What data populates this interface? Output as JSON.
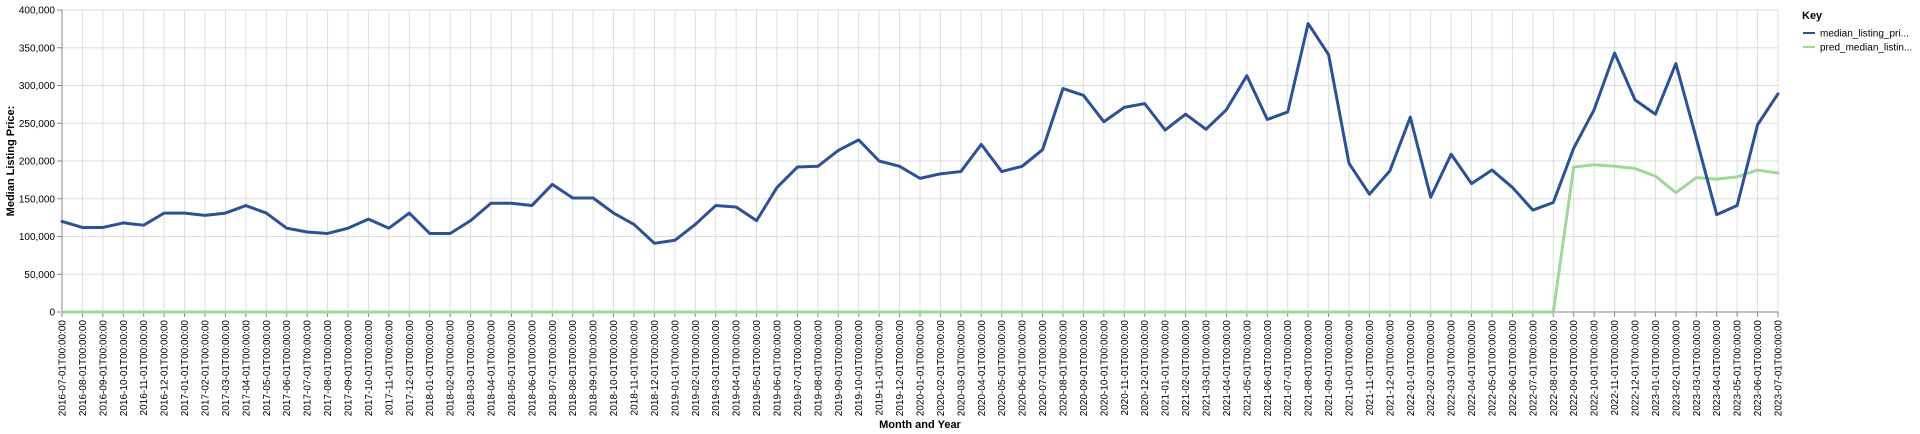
{
  "chart_data": {
    "type": "line",
    "title": "",
    "xlabel": "Month and Year",
    "ylabel": "Median Listing Price:",
    "ylim": [
      0,
      400000
    ],
    "yticks": [
      0,
      50000,
      100000,
      150000,
      200000,
      250000,
      300000,
      350000,
      400000
    ],
    "ytick_labels": [
      "0",
      "50,000",
      "100,000",
      "150,000",
      "200,000",
      "250,000",
      "300,000",
      "350,000",
      "400,000"
    ],
    "grid": true,
    "legend": {
      "title": "Key",
      "placement": "right"
    },
    "categories": [
      "2016-07-01T00:00:00",
      "2016-08-01T00:00:00",
      "2016-09-01T00:00:00",
      "2016-10-01T00:00:00",
      "2016-11-01T00:00:00",
      "2016-12-01T00:00:00",
      "2017-01-01T00:00:00",
      "2017-02-01T00:00:00",
      "2017-03-01T00:00:00",
      "2017-04-01T00:00:00",
      "2017-05-01T00:00:00",
      "2017-06-01T00:00:00",
      "2017-07-01T00:00:00",
      "2017-08-01T00:00:00",
      "2017-09-01T00:00:00",
      "2017-10-01T00:00:00",
      "2017-11-01T00:00:00",
      "2017-12-01T00:00:00",
      "2018-01-01T00:00:00",
      "2018-02-01T00:00:00",
      "2018-03-01T00:00:00",
      "2018-04-01T00:00:00",
      "2018-05-01T00:00:00",
      "2018-06-01T00:00:00",
      "2018-07-01T00:00:00",
      "2018-08-01T00:00:00",
      "2018-09-01T00:00:00",
      "2018-10-01T00:00:00",
      "2018-11-01T00:00:00",
      "2018-12-01T00:00:00",
      "2019-01-01T00:00:00",
      "2019-02-01T00:00:00",
      "2019-03-01T00:00:00",
      "2019-04-01T00:00:00",
      "2019-05-01T00:00:00",
      "2019-06-01T00:00:00",
      "2019-07-01T00:00:00",
      "2019-08-01T00:00:00",
      "2019-09-01T00:00:00",
      "2019-10-01T00:00:00",
      "2019-11-01T00:00:00",
      "2019-12-01T00:00:00",
      "2020-01-01T00:00:00",
      "2020-02-01T00:00:00",
      "2020-03-01T00:00:00",
      "2020-04-01T00:00:00",
      "2020-05-01T00:00:00",
      "2020-06-01T00:00:00",
      "2020-07-01T00:00:00",
      "2020-08-01T00:00:00",
      "2020-09-01T00:00:00",
      "2020-10-01T00:00:00",
      "2020-11-01T00:00:00",
      "2020-12-01T00:00:00",
      "2021-01-01T00:00:00",
      "2021-02-01T00:00:00",
      "2021-03-01T00:00:00",
      "2021-04-01T00:00:00",
      "2021-05-01T00:00:00",
      "2021-06-01T00:00:00",
      "2021-07-01T00:00:00",
      "2021-08-01T00:00:00",
      "2021-09-01T00:00:00",
      "2021-10-01T00:00:00",
      "2021-11-01T00:00:00",
      "2021-12-01T00:00:00",
      "2022-01-01T00:00:00",
      "2022-02-01T00:00:00",
      "2022-03-01T00:00:00",
      "2022-04-01T00:00:00",
      "2022-05-01T00:00:00",
      "2022-06-01T00:00:00",
      "2022-07-01T00:00:00",
      "2022-08-01T00:00:00",
      "2022-09-01T00:00:00",
      "2022-10-01T00:00:00",
      "2022-11-01T00:00:00",
      "2022-12-01T00:00:00",
      "2023-01-01T00:00:00",
      "2023-02-01T00:00:00",
      "2023-03-01T00:00:00",
      "2023-04-01T00:00:00",
      "2023-05-01T00:00:00",
      "2023-06-01T00:00:00",
      "2023-07-01T00:00:00"
    ],
    "series": [
      {
        "name": "median_listing_pri...",
        "color": "#2b5196",
        "values": [
          120000,
          112000,
          112000,
          118000,
          115000,
          131000,
          131000,
          128000,
          131000,
          141000,
          131000,
          111000,
          106000,
          104000,
          111000,
          123000,
          111000,
          131000,
          104000,
          104000,
          121000,
          144000,
          144000,
          141000,
          169000,
          151000,
          151000,
          131000,
          116000,
          91000,
          95000,
          116000,
          141000,
          139000,
          121000,
          165000,
          192000,
          193000,
          214000,
          228000,
          200000,
          193000,
          177000,
          183000,
          186000,
          222000,
          186000,
          193000,
          215000,
          296000,
          287000,
          252000,
          271000,
          276000,
          241000,
          262000,
          242000,
          268000,
          313000,
          255000,
          265000,
          382000,
          341000,
          197000,
          156000,
          187000,
          258000,
          152000,
          209000,
          170000,
          188000,
          165000,
          135000,
          145000,
          217000,
          268000,
          343000,
          281000,
          262000,
          329000,
          230000,
          129000,
          141000,
          248000,
          289000
        ]
      },
      {
        "name": "pred_median_listin...",
        "color": "#9fd89a",
        "values": [
          0,
          0,
          0,
          0,
          0,
          0,
          0,
          0,
          0,
          0,
          0,
          0,
          0,
          0,
          0,
          0,
          0,
          0,
          0,
          0,
          0,
          0,
          0,
          0,
          0,
          0,
          0,
          0,
          0,
          0,
          0,
          0,
          0,
          0,
          0,
          0,
          0,
          0,
          0,
          0,
          0,
          0,
          0,
          0,
          0,
          0,
          0,
          0,
          0,
          0,
          0,
          0,
          0,
          0,
          0,
          0,
          0,
          0,
          0,
          0,
          0,
          0,
          0,
          0,
          0,
          0,
          0,
          0,
          0,
          0,
          0,
          0,
          0,
          0,
          192000,
          195000,
          193000,
          190000,
          180000,
          158000,
          178000,
          176000,
          179000,
          188000,
          184000
        ]
      }
    ]
  }
}
